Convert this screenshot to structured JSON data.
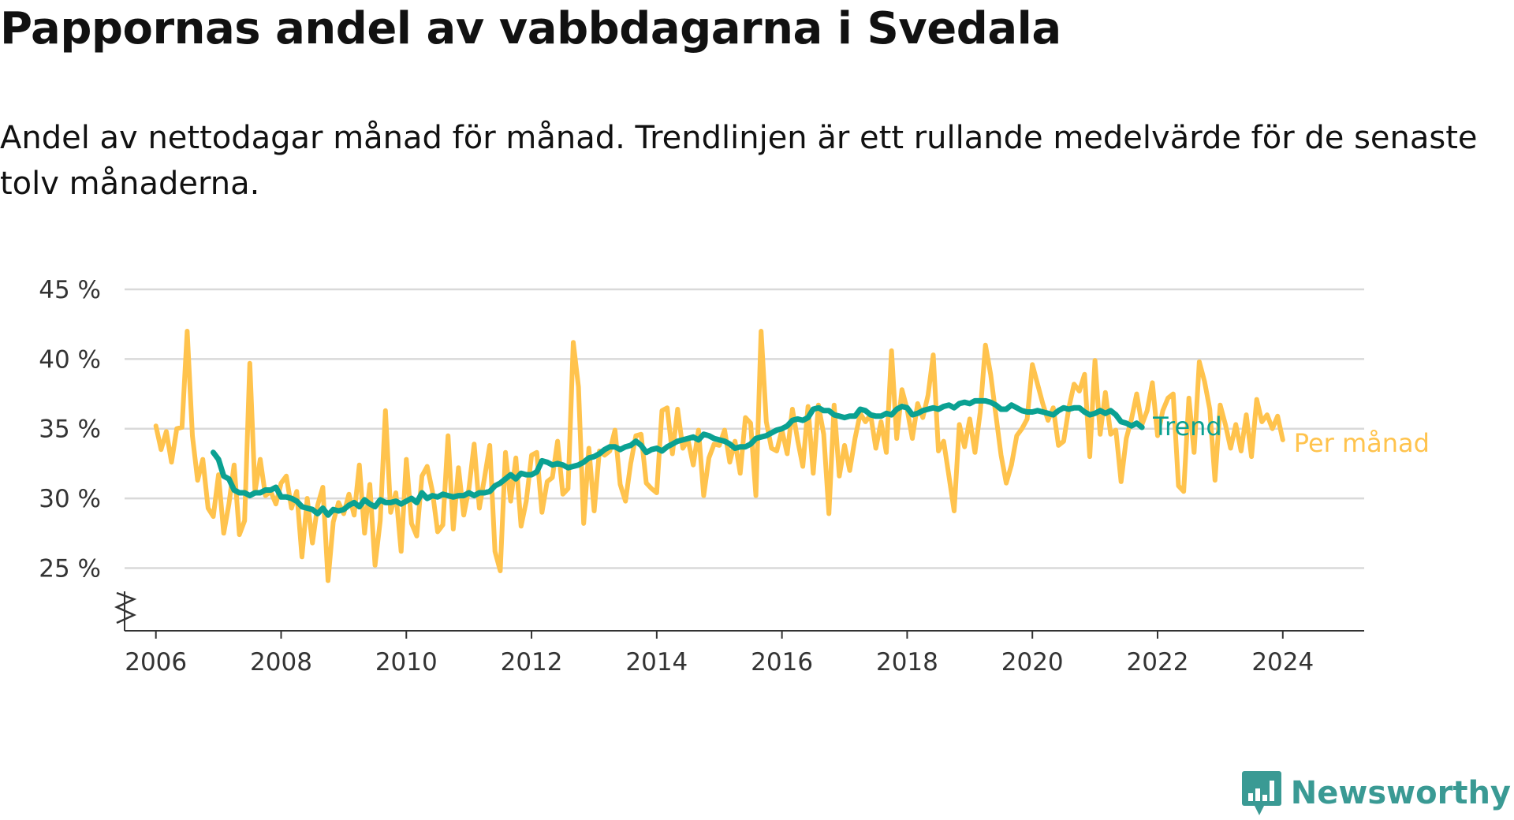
{
  "title": "Pappornas andel av vabbdagarna i Svedala",
  "subtitle": "Andel av nettodagar månad för månad. Trendlinjen är ett rullande medelvärde för de senaste tolv månaderna.",
  "brand": {
    "name": "Newsworthy",
    "icon": "newsworthy-logo-icon",
    "color": "#3a9a94"
  },
  "chart_data": {
    "type": "line",
    "title": "Pappornas andel av vabbdagarna i Svedala",
    "xlabel": "",
    "ylabel": "",
    "ylim": [
      20.5,
      45
    ],
    "xlim": [
      2005.5,
      2025.3
    ],
    "y_ticks": [
      25,
      30,
      35,
      40,
      45
    ],
    "y_tick_labels": [
      "25 %",
      "30 %",
      "35 %",
      "40 %",
      "45 %"
    ],
    "x_ticks": [
      2006,
      2008,
      2010,
      2012,
      2014,
      2016,
      2018,
      2020,
      2022,
      2024
    ],
    "x_tick_labels": [
      "2006",
      "2008",
      "2010",
      "2012",
      "2014",
      "2016",
      "2018",
      "2020",
      "2022",
      "2024"
    ],
    "grid": true,
    "broken_y_axis": true,
    "series": [
      {
        "name": "Per månad",
        "color": "#ffc34d",
        "start": 2006.0,
        "step": 0.0833333,
        "values": [
          35.2,
          33.5,
          34.8,
          32.6,
          35.0,
          35.1,
          42.0,
          34.5,
          31.3,
          32.8,
          29.3,
          28.7,
          31.7,
          27.5,
          29.6,
          32.4,
          27.4,
          28.4,
          39.7,
          30.5,
          32.8,
          30.2,
          30.5,
          29.6,
          31.1,
          31.6,
          29.3,
          30.5,
          25.8,
          30.0,
          26.8,
          29.5,
          30.8,
          24.1,
          28.3,
          29.7,
          28.9,
          30.3,
          28.8,
          32.4,
          27.5,
          31.0,
          25.2,
          28.4,
          36.3,
          29.0,
          30.4,
          26.2,
          32.8,
          28.2,
          27.3,
          31.6,
          32.3,
          30.5,
          27.6,
          28.1,
          34.5,
          27.8,
          32.2,
          28.8,
          30.7,
          33.9,
          29.3,
          31.5,
          33.8,
          26.2,
          24.8,
          33.3,
          29.8,
          32.9,
          28.0,
          29.8,
          33.1,
          33.3,
          29.0,
          31.2,
          31.5,
          34.1,
          30.3,
          30.7,
          41.2,
          38.0,
          28.2,
          33.6,
          29.1,
          33.4,
          33.1,
          33.4,
          34.9,
          31.0,
          29.8,
          32.5,
          34.5,
          34.6,
          31.1,
          30.7,
          30.4,
          36.3,
          36.5,
          33.2,
          36.4,
          33.6,
          34.2,
          32.4,
          34.9,
          30.2,
          32.9,
          33.9,
          33.8,
          34.9,
          32.6,
          34.1,
          31.8,
          35.8,
          35.4,
          30.2,
          42.0,
          35.5,
          33.6,
          33.4,
          34.9,
          33.2,
          36.4,
          34.2,
          32.3,
          36.6,
          31.8,
          36.7,
          34.6,
          28.9,
          36.7,
          31.6,
          33.8,
          32.0,
          34.3,
          36.1,
          35.5,
          36.0,
          33.6,
          35.5,
          33.3,
          40.6,
          34.3,
          37.8,
          36.4,
          34.3,
          36.8,
          35.8,
          37.4,
          40.3,
          33.4,
          34.1,
          31.6,
          29.1,
          35.3,
          33.7,
          35.7,
          33.3,
          36.2,
          41.0,
          38.9,
          36.0,
          33.1,
          31.1,
          32.4,
          34.5,
          35.0,
          35.7,
          39.6,
          38.2,
          36.8,
          35.6,
          36.5,
          33.8,
          34.1,
          36.5,
          38.2,
          37.7,
          38.9,
          33.0,
          39.9,
          34.6,
          37.6,
          34.6,
          34.9,
          31.2,
          34.3,
          35.7,
          37.5,
          35.3,
          36.3,
          38.3,
          34.5,
          36.3,
          37.2,
          37.5,
          30.9,
          30.5,
          37.2,
          33.3,
          39.8,
          38.4,
          36.4,
          31.3,
          36.7,
          35.3,
          33.6,
          35.3,
          33.4,
          36.0,
          33.0,
          37.1,
          35.5,
          36.0,
          35.0,
          35.9,
          34.2
        ]
      },
      {
        "name": "Trend",
        "color": "#0aa192",
        "start": 2006.9167,
        "step": 0.0833333,
        "values": [
          33.3,
          32.8,
          31.6,
          31.4,
          30.6,
          30.4,
          30.4,
          30.2,
          30.4,
          30.4,
          30.6,
          30.6,
          30.8,
          30.1,
          30.1,
          30.0,
          29.8,
          29.4,
          29.3,
          29.2,
          28.9,
          29.3,
          28.8,
          29.2,
          29.1,
          29.2,
          29.5,
          29.7,
          29.4,
          29.9,
          29.6,
          29.4,
          29.9,
          29.7,
          29.7,
          29.8,
          29.6,
          29.8,
          30.0,
          29.7,
          30.4,
          30.0,
          30.2,
          30.1,
          30.3,
          30.2,
          30.1,
          30.2,
          30.2,
          30.4,
          30.2,
          30.4,
          30.4,
          30.5,
          30.9,
          31.1,
          31.4,
          31.7,
          31.4,
          31.8,
          31.7,
          31.7,
          31.9,
          32.7,
          32.6,
          32.4,
          32.5,
          32.4,
          32.2,
          32.3,
          32.4,
          32.6,
          32.9,
          33.0,
          33.2,
          33.5,
          33.7,
          33.7,
          33.5,
          33.7,
          33.8,
          34.1,
          33.8,
          33.3,
          33.5,
          33.6,
          33.4,
          33.7,
          33.9,
          34.1,
          34.2,
          34.3,
          34.4,
          34.2,
          34.6,
          34.5,
          34.3,
          34.2,
          34.1,
          33.9,
          33.6,
          33.7,
          33.7,
          33.9,
          34.3,
          34.4,
          34.5,
          34.7,
          34.9,
          35.0,
          35.2,
          35.6,
          35.7,
          35.6,
          35.8,
          36.4,
          36.5,
          36.3,
          36.3,
          36.0,
          35.9,
          35.8,
          35.9,
          35.9,
          36.4,
          36.3,
          36.0,
          35.9,
          35.9,
          36.1,
          36.0,
          36.4,
          36.6,
          36.5,
          36.0,
          36.1,
          36.3,
          36.4,
          36.5,
          36.4,
          36.6,
          36.7,
          36.5,
          36.8,
          36.9,
          36.8,
          37.0,
          37.0,
          37.0,
          36.9,
          36.7,
          36.4,
          36.4,
          36.7,
          36.5,
          36.3,
          36.2,
          36.2,
          36.3,
          36.2,
          36.1,
          36.0,
          36.3,
          36.5,
          36.4,
          36.5,
          36.5,
          36.2,
          36.0,
          36.1,
          36.3,
          36.1,
          36.3,
          36.0,
          35.5,
          35.4,
          35.2,
          35.4,
          35.1
        ]
      }
    ],
    "series_label_order": [
      "Trend",
      "Per månad"
    ]
  }
}
